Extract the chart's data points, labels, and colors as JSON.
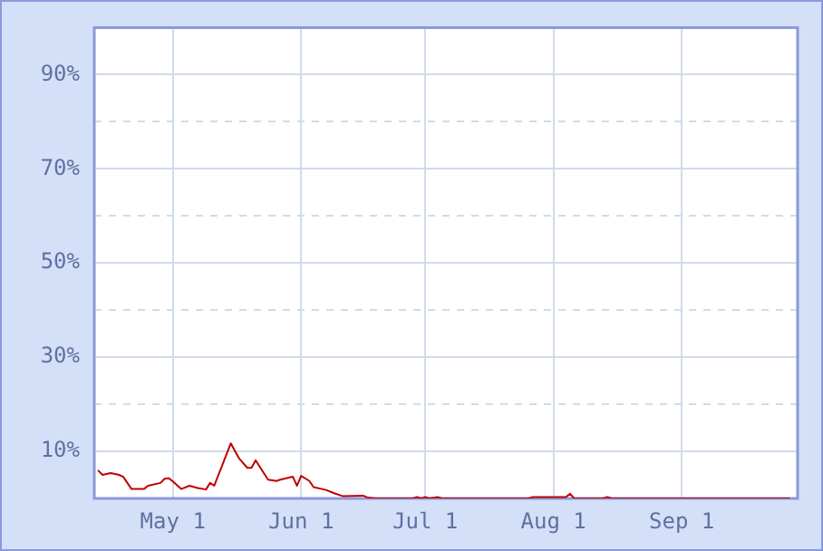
{
  "chart_data": {
    "type": "line",
    "x": [
      "--04-13",
      "--04-14",
      "--04-16",
      "--04-18",
      "--04-19",
      "--04-21",
      "--04-24",
      "--04-25",
      "--04-28",
      "--04-29",
      "--04-30",
      "--05-01",
      "--05-03",
      "--05-05",
      "--05-07",
      "--05-09",
      "--05-10",
      "--05-11",
      "--05-13",
      "--05-15",
      "--05-17",
      "--05-19",
      "--05-20",
      "--05-21",
      "--05-24",
      "--05-26",
      "--05-27",
      "--05-30",
      "--05-31",
      "--06-01",
      "--06-03",
      "--06-04",
      "--06-07",
      "--06-09",
      "--06-11",
      "--06-16",
      "--06-17",
      "--06-19",
      "--06-28",
      "--06-29",
      "--06-30",
      "--07-01",
      "--07-02",
      "--07-04",
      "--07-05",
      "--07-26",
      "--07-27",
      "--08-04",
      "--08-05",
      "--08-06",
      "--08-13",
      "--08-14",
      "--08-15",
      "--09-27"
    ],
    "series": [
      {
        "color": "#c00000",
        "values": [
          5.9,
          5.0,
          5.4,
          5.0,
          4.6,
          2.0,
          2.0,
          2.7,
          3.3,
          4.2,
          4.3,
          3.6,
          2.0,
          2.7,
          2.2,
          1.9,
          3.3,
          2.7,
          7.2,
          11.7,
          8.5,
          6.5,
          6.5,
          8.1,
          4.0,
          3.7,
          4.0,
          4.6,
          2.7,
          4.8,
          3.7,
          2.4,
          1.8,
          1.1,
          0.5,
          0.6,
          0.2,
          0,
          0,
          0.3,
          0,
          0.3,
          0,
          0.3,
          0,
          0,
          0.3,
          0.3,
          1.0,
          0,
          0,
          0.3,
          0,
          0
        ]
      }
    ],
    "xlim": [
      "--04-12",
      "--09-29"
    ],
    "xticks": [
      {
        "value": "--05-01",
        "label": "May 1"
      },
      {
        "value": "--06-01",
        "label": "Jun 1"
      },
      {
        "value": "--07-01",
        "label": "Jul 1"
      },
      {
        "value": "--08-01",
        "label": "Aug 1"
      },
      {
        "value": "--09-01",
        "label": "Sep 1"
      }
    ],
    "ylim": [
      0,
      100
    ],
    "yticks": [
      {
        "value": 10,
        "label": "10%"
      },
      {
        "value": 20,
        "label": null
      },
      {
        "value": 30,
        "label": "30%"
      },
      {
        "value": 40,
        "label": null
      },
      {
        "value": 50,
        "label": "50%"
      },
      {
        "value": 60,
        "label": null
      },
      {
        "value": 70,
        "label": "70%"
      },
      {
        "value": 80,
        "label": null
      },
      {
        "value": 90,
        "label": "90%"
      }
    ],
    "grid": true,
    "legend": false,
    "marker": "none",
    "line_style": "solid"
  }
}
